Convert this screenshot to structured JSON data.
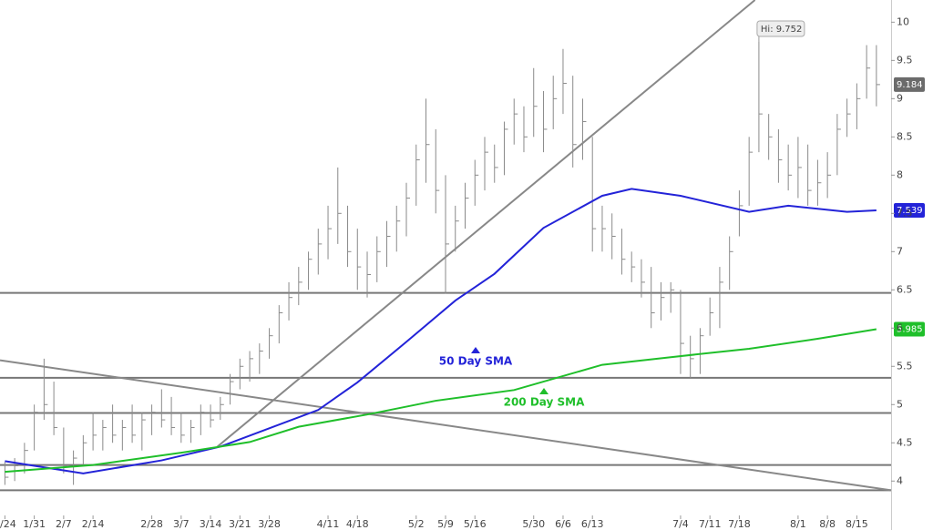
{
  "chart_data": {
    "type": "ohlc",
    "xlim": [
      -0.5,
      90.5
    ],
    "ylim": [
      3.36,
      10.29
    ],
    "yticks": [
      4,
      4.5,
      5,
      5.5,
      6,
      6.5,
      7,
      7.5,
      8,
      8.5,
      9,
      9.5,
      10
    ],
    "xticks": [
      {
        "value": 0,
        "label": "1/24"
      },
      {
        "value": 3,
        "label": "1/31"
      },
      {
        "value": 6,
        "label": "2/7"
      },
      {
        "value": 9,
        "label": "2/14"
      },
      {
        "value": 15,
        "label": "2/28"
      },
      {
        "value": 18,
        "label": "3/7"
      },
      {
        "value": 21,
        "label": "3/14"
      },
      {
        "value": 24,
        "label": "3/21"
      },
      {
        "value": 27,
        "label": "3/28"
      },
      {
        "value": 33,
        "label": "4/11"
      },
      {
        "value": 36,
        "label": "4/18"
      },
      {
        "value": 42,
        "label": "5/2"
      },
      {
        "value": 45,
        "label": "5/9"
      },
      {
        "value": 48,
        "label": "5/16"
      },
      {
        "value": 54,
        "label": "5/30"
      },
      {
        "value": 57,
        "label": "6/6"
      },
      {
        "value": 60,
        "label": "6/13"
      },
      {
        "value": 69,
        "label": "7/4"
      },
      {
        "value": 72,
        "label": "7/11"
      },
      {
        "value": 75,
        "label": "7/18"
      },
      {
        "value": 81,
        "label": "8/1"
      },
      {
        "value": 84,
        "label": "8/8"
      },
      {
        "value": 87,
        "label": "8/15"
      }
    ],
    "bar_color": "#8a8a8a",
    "bars": {
      "high": [
        4.25,
        4.3,
        4.5,
        5.0,
        5.6,
        5.3,
        4.7,
        4.4,
        4.6,
        4.9,
        4.8,
        5.0,
        4.8,
        5.0,
        4.9,
        5.0,
        5.2,
        5.1,
        4.9,
        4.8,
        5.0,
        5.0,
        5.1,
        5.4,
        5.6,
        5.7,
        5.8,
        6.0,
        6.3,
        6.6,
        6.8,
        7.0,
        7.3,
        7.6,
        8.1,
        7.6,
        7.3,
        7.0,
        7.2,
        7.4,
        7.6,
        7.9,
        8.4,
        9.0,
        8.6,
        8.0,
        7.6,
        7.9,
        8.2,
        8.5,
        8.4,
        8.7,
        9.0,
        8.9,
        9.4,
        9.1,
        9.3,
        9.65,
        9.3,
        9.0,
        8.5,
        7.6,
        7.5,
        7.3,
        7.0,
        6.9,
        6.8,
        6.6,
        6.6,
        6.5,
        5.9,
        6.0,
        6.4,
        6.8,
        7.2,
        7.8,
        8.5,
        9.752,
        8.8,
        8.6,
        8.4,
        8.5,
        8.4,
        8.2,
        8.3,
        8.8,
        9.0,
        9.2,
        9.7,
        9.7
      ],
      "low": [
        3.95,
        4.0,
        4.1,
        4.4,
        4.8,
        4.6,
        4.1,
        3.95,
        4.2,
        4.4,
        4.4,
        4.5,
        4.4,
        4.5,
        4.4,
        4.6,
        4.7,
        4.6,
        4.5,
        4.5,
        4.6,
        4.7,
        4.8,
        5.0,
        5.2,
        5.3,
        5.4,
        5.6,
        5.8,
        6.1,
        6.3,
        6.5,
        6.7,
        6.9,
        7.1,
        6.8,
        6.5,
        6.4,
        6.6,
        6.8,
        7.0,
        7.2,
        7.6,
        7.9,
        7.5,
        6.45,
        7.0,
        7.3,
        7.6,
        7.8,
        7.9,
        8.0,
        8.4,
        8.3,
        8.5,
        8.3,
        8.6,
        8.8,
        8.1,
        8.2,
        7.0,
        7.0,
        6.9,
        6.7,
        6.6,
        6.4,
        6.0,
        6.1,
        6.2,
        5.4,
        5.35,
        5.4,
        5.9,
        6.0,
        6.5,
        7.2,
        7.6,
        8.3,
        8.2,
        7.9,
        7.8,
        7.7,
        7.6,
        7.6,
        7.7,
        8.0,
        8.5,
        8.6,
        9.0,
        8.9
      ],
      "close": [
        4.05,
        4.2,
        4.4,
        4.9,
        5.0,
        4.7,
        4.2,
        4.3,
        4.5,
        4.6,
        4.7,
        4.6,
        4.7,
        4.6,
        4.8,
        4.9,
        4.8,
        4.7,
        4.6,
        4.7,
        4.9,
        4.8,
        5.0,
        5.3,
        5.5,
        5.6,
        5.7,
        5.9,
        6.2,
        6.4,
        6.6,
        6.9,
        7.1,
        7.3,
        7.5,
        7.0,
        6.8,
        6.7,
        7.0,
        7.2,
        7.4,
        7.7,
        8.2,
        8.4,
        7.8,
        7.1,
        7.4,
        7.7,
        8.0,
        8.3,
        8.1,
        8.6,
        8.8,
        8.5,
        8.9,
        8.6,
        9.0,
        9.2,
        8.4,
        8.7,
        7.3,
        7.3,
        7.2,
        6.9,
        6.8,
        6.6,
        6.2,
        6.4,
        6.5,
        5.8,
        5.6,
        5.9,
        6.2,
        6.6,
        7.0,
        7.6,
        8.3,
        8.8,
        8.5,
        8.2,
        8.0,
        8.1,
        7.8,
        7.9,
        8.0,
        8.6,
        8.8,
        9.0,
        9.4,
        9.184
      ]
    },
    "series": [
      {
        "name": "50 Day SMA",
        "color": "#2323d8",
        "x": [
          0,
          3,
          8,
          16,
          22,
          27,
          32,
          36,
          41,
          46,
          50,
          55,
          61,
          64,
          69,
          76,
          80,
          86,
          89
        ],
        "values": [
          4.26,
          4.2,
          4.1,
          4.27,
          4.45,
          4.69,
          4.93,
          5.29,
          5.82,
          6.36,
          6.71,
          7.31,
          7.73,
          7.82,
          7.73,
          7.52,
          7.6,
          7.52,
          7.539
        ]
      },
      {
        "name": "200 Day SMA",
        "color": "#1fbf2a",
        "x": [
          0,
          9,
          18,
          25,
          30,
          37,
          44,
          52,
          61,
          68,
          76,
          83,
          89
        ],
        "values": [
          4.12,
          4.21,
          4.37,
          4.51,
          4.71,
          4.87,
          5.05,
          5.19,
          5.52,
          5.62,
          5.73,
          5.86,
          5.985
        ]
      }
    ],
    "level_lines": [
      6.46,
      5.35,
      4.89,
      4.21,
      3.88
    ],
    "trend_lines": [
      {
        "x": [
          21.7,
          76.6
        ],
        "y": [
          4.45,
          10.29
        ]
      },
      {
        "x": [
          -0.5,
          90.5
        ],
        "y": [
          5.58,
          3.88
        ]
      }
    ],
    "high_annotation": "Hi: 9.752"
  }
}
